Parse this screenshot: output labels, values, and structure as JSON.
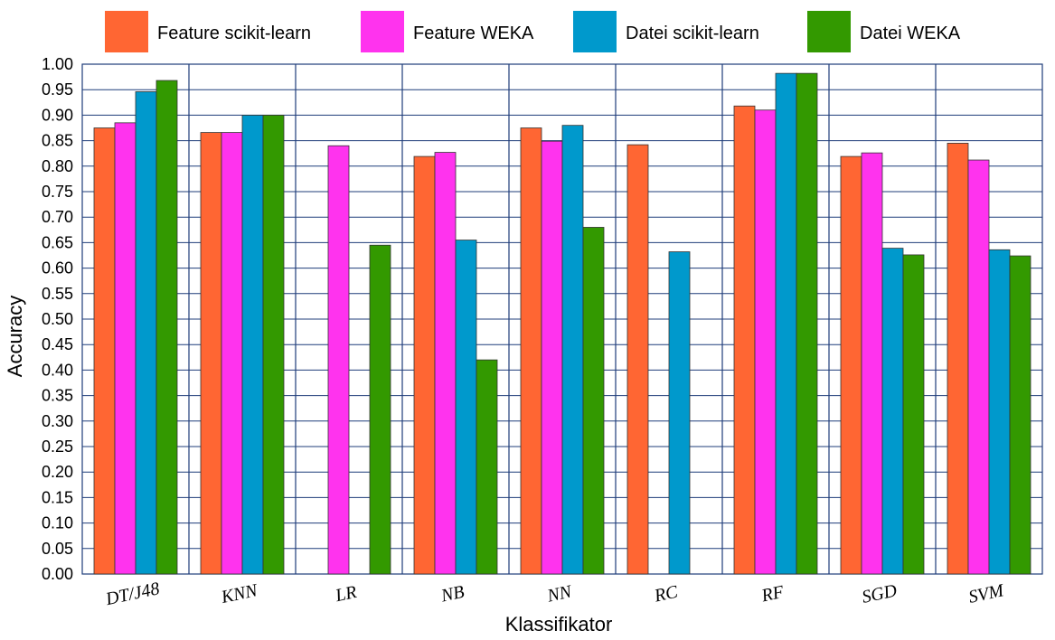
{
  "chart_data": {
    "type": "bar",
    "categories": [
      "DT/J48",
      "KNN",
      "LR",
      "NB",
      "NN",
      "RC",
      "RF",
      "SGD",
      "SVM"
    ],
    "series": [
      {
        "name": "Feature scikit-learn",
        "color": "#ff6633",
        "values": [
          0.875,
          0.866,
          null,
          0.819,
          0.875,
          0.842,
          0.918,
          0.819,
          0.845
        ]
      },
      {
        "name": "Feature WEKA",
        "color": "#ff33ee",
        "values": [
          0.885,
          0.866,
          0.84,
          0.827,
          0.849,
          null,
          0.91,
          0.826,
          0.812
        ]
      },
      {
        "name": "Datei scikit-learn",
        "color": "#0099cc",
        "values": [
          0.946,
          0.9,
          null,
          0.655,
          0.88,
          0.632,
          0.982,
          0.639,
          0.636
        ]
      },
      {
        "name": "Datei WEKA",
        "color": "#339900",
        "values": [
          0.968,
          0.9,
          0.645,
          0.42,
          0.68,
          null,
          0.982,
          0.626,
          0.624
        ]
      }
    ],
    "xlabel": "Klassifikator",
    "ylabel": "Accuracy",
    "ylim": [
      0,
      1
    ],
    "yticks": [
      "0.00",
      "0.05",
      "0.10",
      "0.15",
      "0.20",
      "0.25",
      "0.30",
      "0.35",
      "0.40",
      "0.45",
      "0.50",
      "0.55",
      "0.60",
      "0.65",
      "0.70",
      "0.75",
      "0.80",
      "0.85",
      "0.90",
      "0.95",
      "1.00"
    ],
    "grid": true,
    "legend_position": "top"
  }
}
